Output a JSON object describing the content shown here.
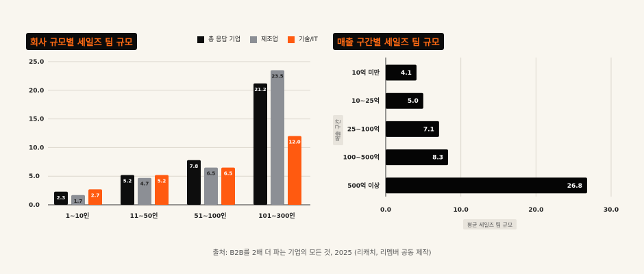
{
  "chart_data": [
    {
      "type": "bar",
      "title": "회사 규모별 세일즈 팀 규모",
      "categories": [
        "1~10인",
        "11~50인",
        "51~100인",
        "101~300인"
      ],
      "series": [
        {
          "name": "총 응답 기업",
          "color": "#0d0d0d",
          "values": [
            2.3,
            5.2,
            7.8,
            21.2
          ]
        },
        {
          "name": "제조업",
          "color": "#8c8f95",
          "values": [
            1.7,
            4.7,
            6.5,
            23.5
          ]
        },
        {
          "name": "기술/IT",
          "color": "#ff5a10",
          "values": [
            2.7,
            5.2,
            6.5,
            12.0
          ]
        }
      ],
      "yticks": [
        "0.0",
        "5.0",
        "10.0",
        "15.0",
        "20.0",
        "25.0"
      ],
      "ylim": [
        0,
        25
      ],
      "legend": "top-right",
      "grid": true
    },
    {
      "type": "bar",
      "orientation": "horizontal",
      "title": "매출 구간별 세일즈 팀 규모",
      "categories": [
        "10억 미만",
        "10~25억",
        "25~100억",
        "100~500억",
        "500억 이상"
      ],
      "values": [
        4.1,
        5.0,
        7.1,
        8.3,
        26.8
      ],
      "xticks": [
        "0.0",
        "10.0",
        "20.0",
        "30.0"
      ],
      "xlim": [
        0,
        30
      ],
      "xlabel": "평균 세일즈 팀 규모",
      "ylabel": "매출 구간",
      "grid": true
    }
  ],
  "source": "출처: B2B를 2배 더 파는 기업의 모든 것, 2025 (리캐치, 리멤버 공동 제작)"
}
